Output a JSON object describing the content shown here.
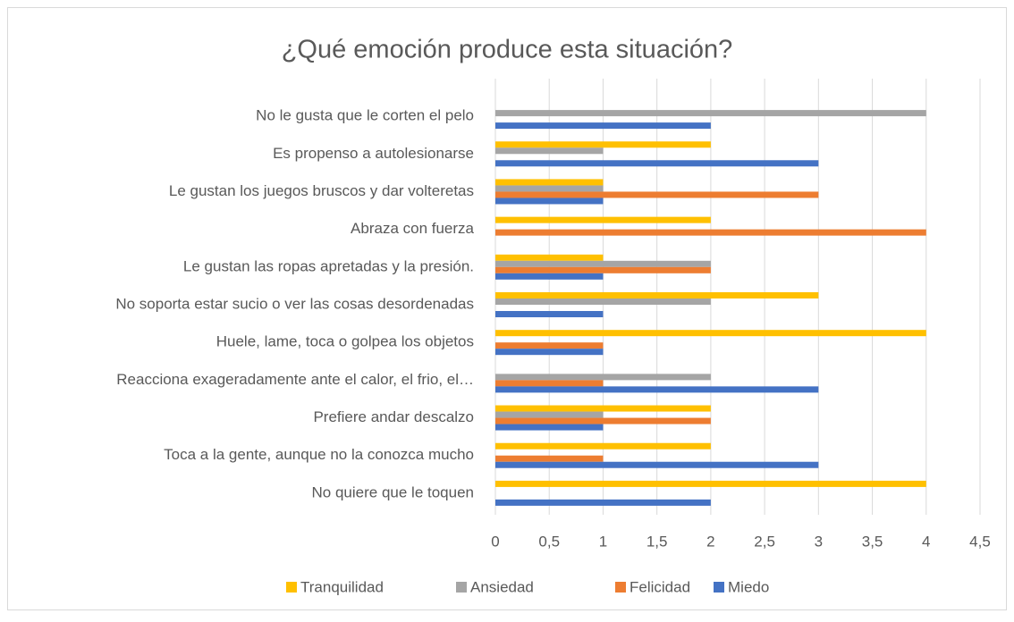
{
  "chart_data": {
    "type": "bar",
    "orientation": "horizontal",
    "title": "¿Qué emoción produce esta situación?",
    "categories": [
      "No le gusta que le corten el pelo",
      "Es propenso a autolesionarse",
      "Le gustan los juegos bruscos y dar volteretas",
      "Abraza con fuerza",
      "Le gustan las ropas apretadas y la presión.",
      "No soporta estar sucio o ver las cosas desordenadas",
      "Huele, lame, toca o golpea los objetos",
      "Reacciona exageradamente ante el calor, el frio, el…",
      "Prefiere andar descalzo",
      "Toca a la gente, aunque no la conozca mucho",
      "No quiere que le toquen"
    ],
    "series": [
      {
        "name": "Tranquilidad",
        "color": "#ffc000",
        "values": [
          0,
          2,
          1,
          2,
          1,
          3,
          4,
          0,
          2,
          2,
          4
        ]
      },
      {
        "name": "Ansiedad",
        "color": "#a5a5a5",
        "values": [
          4,
          1,
          1,
          0,
          2,
          2,
          0,
          2,
          1,
          0,
          0
        ]
      },
      {
        "name": "Felicidad",
        "color": "#ed7d31",
        "values": [
          0,
          0,
          3,
          4,
          2,
          0,
          1,
          1,
          2,
          1,
          0
        ]
      },
      {
        "name": "Miedo",
        "color": "#4472c4",
        "values": [
          2,
          3,
          1,
          0,
          1,
          1,
          1,
          3,
          1,
          3,
          2
        ]
      }
    ],
    "xlim": [
      0,
      4.5
    ],
    "xticks": [
      0,
      {
        "value": 0.5,
        "label": "0,5"
      },
      1,
      {
        "value": 1.5,
        "label": "1,5"
      },
      2,
      {
        "value": 2.5,
        "label": "2,5"
      },
      3,
      {
        "value": 3.5,
        "label": "3,5"
      },
      4,
      {
        "value": 4.5,
        "label": "4,5"
      }
    ],
    "grid": true,
    "legend": "bottom"
  }
}
